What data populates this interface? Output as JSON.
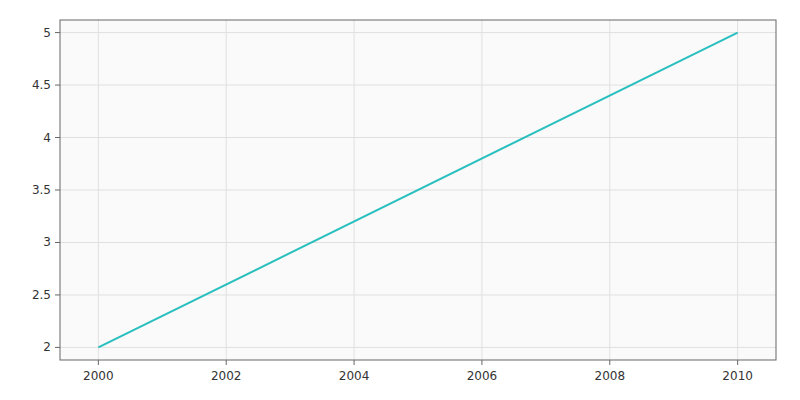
{
  "chart_data": {
    "type": "line",
    "x": [
      2000,
      2010
    ],
    "values": [
      2,
      5
    ],
    "color": "#2abfbf",
    "xlim": [
      1999.4,
      2010.6
    ],
    "ylim": [
      1.88,
      5.12
    ],
    "xticks": [
      2000,
      2002,
      2004,
      2006,
      2008,
      2010
    ],
    "yticks": [
      2,
      2.5,
      3,
      3.5,
      4,
      4.5,
      5
    ],
    "grid": true
  }
}
